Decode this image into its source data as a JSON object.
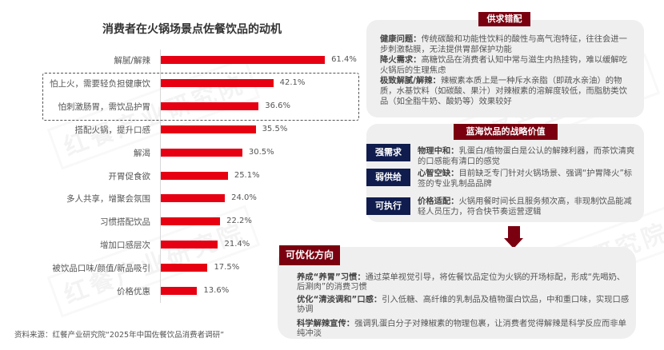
{
  "chart_data": {
    "type": "bar",
    "orientation": "horizontal",
    "title": "消费者在火锅场景点佐餐饮品的动机",
    "xlabel": "",
    "ylabel": "",
    "unit": "%",
    "grid": false,
    "categories": [
      "解腻/解辣",
      "怕上火，需要轻负担健康饮",
      "怕刺激肠胃，需饮品护胃",
      "搭配火锅，提升口感",
      "解渴",
      "开胃促食欲",
      "多人共享，增聚会氛围",
      "习惯搭配饮品",
      "增加口感层次",
      "被饮品口味/颜值/新品吸引",
      "价格优惠"
    ],
    "values": [
      61.4,
      42.1,
      36.6,
      35.5,
      30.5,
      25.1,
      24.0,
      22.2,
      21.4,
      17.5,
      13.6
    ],
    "value_labels": [
      "61.4%",
      "42.1%",
      "36.6%",
      "35.5%",
      "30.5%",
      "25.1%",
      "24.0%",
      "22.2%",
      "21.4%",
      "17.5%",
      "13.6%"
    ],
    "highlighted_categories": [
      "怕上火，需要轻负担健康饮",
      "怕刺激肠胃，需饮品护胃"
    ],
    "bar_color": "#e60012"
  },
  "source": "资料来源：红餐产业研究院“2025年中国佐餐饮品消费者调研”",
  "watermark": "红餐产业研究院",
  "panels": {
    "supply_demand": {
      "title": "供求错配",
      "items": [
        {
          "label": "健康问题：",
          "text": "传统碳酸和功能性饮料的酸性与高气泡特征，往往会进一步刺激黏膜，无法提供胃部保护功能"
        },
        {
          "label": "降火需求：",
          "text": "高糖饮品在消费者认知中常与滋生内热挂钩，难以缓解吃火锅后的生理焦虑"
        },
        {
          "label": "极致解腻/解辣：",
          "text": "辣椒素本质上是一种斥水亲脂（即疏水亲油）的物质，水基饮料（如碳酸、果汁）对辣椒素的溶解度较低，而脂肪类饮品（如全脂牛奶、酸奶等）效果较好"
        }
      ]
    },
    "strategic_value": {
      "title": "蓝海饮品的战略价值",
      "items": [
        {
          "tag": "强需求",
          "label": "物理中和：",
          "text": "乳蛋白/植物蛋白是公认的解辣利器，而茶饮清爽的口感能有清口的感觉"
        },
        {
          "tag": "弱供给",
          "label": "心智空缺：",
          "text": "目前缺乏专门针对火锅场景、强调“护胃降火”标签的专业乳制品品牌"
        },
        {
          "tag": "可执行",
          "label": "价格适配：",
          "text": "火锅用餐时间长且服务频次高，非现制饮品能减轻人员压力，符合快节奏运营逻辑"
        }
      ]
    },
    "optimization": {
      "title": "可优化方向",
      "items": [
        {
          "label": "养成“养胃”习惯：",
          "text": "通过菜单视觉引导，将佐餐饮品定位为火锅的开场标配，形成“先喝奶、后涮肉”的消费习惯"
        },
        {
          "label": "优化“清淡调和”口感：",
          "text": "引入低糖、高纤维的乳制品及植物蛋白饮品，中和重口味，实现口感协调"
        },
        {
          "label": "科学解辣宣传：",
          "text": "强调乳蛋白分子对辣椒素的物理包裹，让消费者觉得解辣是科学反应而非单纯冲淡"
        }
      ]
    }
  },
  "colors": {
    "bar": "#e60012",
    "badge": "#7a0010",
    "tag": "#0f1c4d",
    "panel_bg": "#efefef"
  }
}
